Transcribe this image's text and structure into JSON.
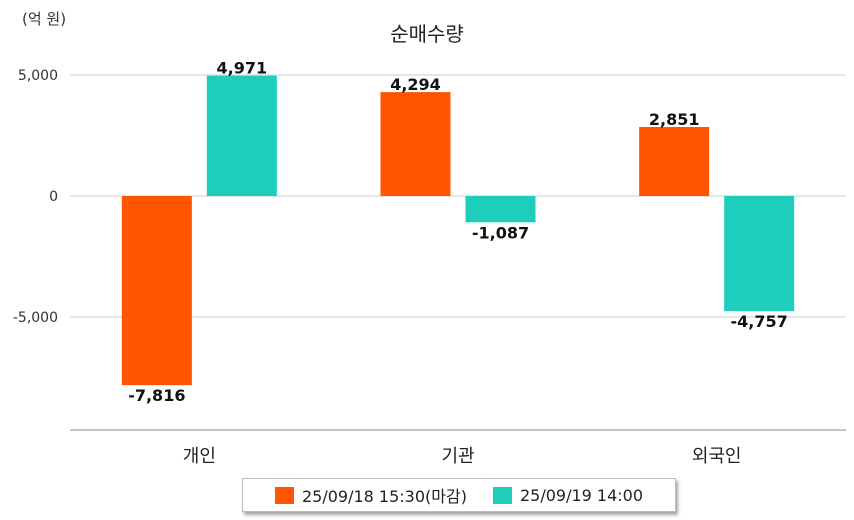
{
  "chart_data": {
    "type": "bar",
    "title": "순매수량",
    "unit_label": "(억 원)",
    "categories": [
      "개인",
      "기관",
      "외국인"
    ],
    "series": [
      {
        "name": "25/09/18 15:30(마감)",
        "values": [
          -7816,
          4294,
          2851
        ],
        "labels": [
          "-7,816",
          "4,294",
          "2,851"
        ],
        "color": "#ff5500"
      },
      {
        "name": "25/09/19 14:00",
        "values": [
          4971,
          -1087,
          -4757
        ],
        "labels": [
          "4,971",
          "-1,087",
          "-4,757"
        ],
        "color": "#1ecdbb"
      }
    ],
    "y_ticks": [
      5000,
      0,
      -5000
    ],
    "y_tick_labels": [
      "5,000",
      "0",
      "-5,000"
    ],
    "ylim": [
      -9800,
      5000
    ],
    "grid": true,
    "legend_position": "bottom"
  }
}
